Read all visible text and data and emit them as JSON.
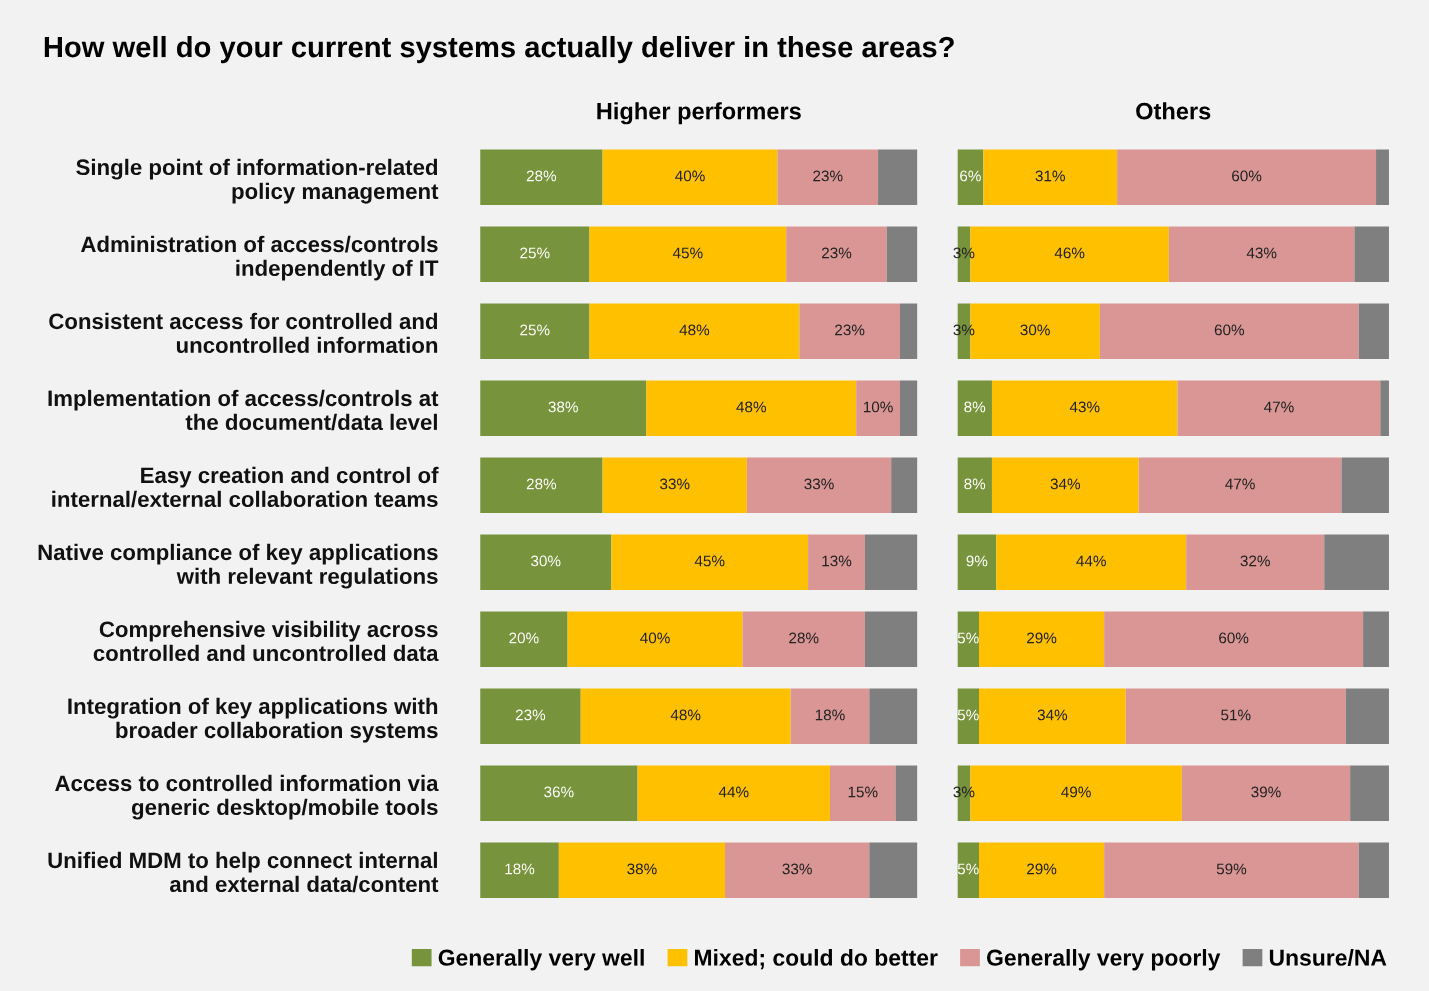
{
  "chart_data": [
    {
      "type": "bar",
      "orientation": "horizontal",
      "stacked": true,
      "title": "Higher performers",
      "annotations": [
        "How well do your current systems actually deliver in these areas?"
      ],
      "categories": [
        "Single point of information-related\npolicy management",
        "Administration of access/controls\nindependently of IT",
        "Consistent access for controlled and\nuncontrolled information",
        "Implementation of access/controls at\nthe document/data level",
        "Easy creation and control of\ninternal/external collaboration teams",
        "Native compliance of key applications\nwith relevant regulations",
        "Comprehensive visibility across\ncontrolled and uncontrolled data",
        "Integration of key applications with\nbroader collaboration systems",
        "Access to controlled information via\ngeneric desktop/mobile tools",
        "Unified MDM to help connect internal\nand external data/content"
      ],
      "xlim": [
        0,
        100
      ],
      "tick_labels": "y",
      "legend": "bottom",
      "series": [
        {
          "name": "Generally very well",
          "color": "#77933c",
          "values": [
            28,
            25,
            25,
            38,
            28,
            30,
            20,
            23,
            36,
            18
          ],
          "value_labels": [
            "28%",
            "25%",
            "25%",
            "38%",
            "28%",
            "30%",
            "20%",
            "23%",
            "36%",
            "18%"
          ]
        },
        {
          "name": "Mixed; could do better",
          "color": "#ffc000",
          "values": [
            40,
            45,
            48,
            48,
            33,
            45,
            40,
            48,
            44,
            38
          ],
          "value_labels": [
            "40%",
            "45%",
            "48%",
            "48%",
            "33%",
            "45%",
            "40%",
            "48%",
            "44%",
            "38%"
          ]
        },
        {
          "name": "Generally very poorly",
          "color": "#d99694",
          "values": [
            23,
            23,
            23,
            10,
            33,
            13,
            28,
            18,
            15,
            33
          ],
          "value_labels": [
            "23%",
            "23%",
            "23%",
            "10%",
            "33%",
            "13%",
            "28%",
            "18%",
            "15%",
            "33%"
          ]
        },
        {
          "name": "Unsure/NA",
          "color": "#7f7f7f",
          "values": [
            9,
            7,
            4,
            4,
            6,
            12,
            12,
            11,
            5,
            11
          ]
        }
      ]
    },
    {
      "type": "bar",
      "orientation": "horizontal",
      "stacked": true,
      "title": "Others",
      "categories": [
        null,
        null,
        null,
        null,
        null,
        null,
        null,
        null,
        null,
        null
      ],
      "xlim": [
        0,
        100
      ],
      "series": [
        {
          "color": "#77933c",
          "values": [
            6,
            3,
            3,
            8,
            8,
            9,
            5,
            5,
            3,
            5
          ],
          "value_labels": [
            "6%",
            "3%",
            "3%",
            "8%",
            "8%",
            "9%",
            "5%",
            "5%",
            "3%",
            "5%"
          ]
        },
        {
          "color": "#ffc000",
          "values": [
            31,
            46,
            30,
            43,
            34,
            44,
            29,
            34,
            49,
            29
          ],
          "value_labels": [
            "31%",
            "46%",
            "30%",
            "43%",
            "34%",
            "44%",
            "29%",
            "34%",
            "49%",
            "29%"
          ]
        },
        {
          "color": "#d99694",
          "values": [
            60,
            43,
            60,
            47,
            47,
            32,
            60,
            51,
            39,
            59
          ],
          "value_labels": [
            "60%",
            "43%",
            "60%",
            "47%",
            "47%",
            "32%",
            "60%",
            "51%",
            "39%",
            "59%"
          ]
        },
        {
          "color": "#7f7f7f",
          "values": [
            3,
            8,
            7,
            2,
            11,
            15,
            6,
            10,
            9,
            7
          ]
        }
      ]
    }
  ]
}
